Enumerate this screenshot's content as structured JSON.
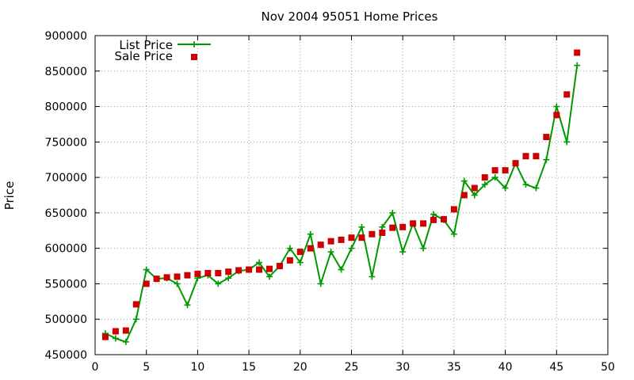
{
  "chart_data": {
    "type": "line",
    "title": "Nov 2004 95051 Home Prices",
    "xlabel": "",
    "ylabel": "Price",
    "xlim": [
      0,
      50
    ],
    "ylim": [
      450000,
      900000
    ],
    "x_ticks": [
      "0",
      "5",
      "10",
      "15",
      "20",
      "25",
      "30",
      "35",
      "40",
      "45",
      "50"
    ],
    "y_ticks": [
      "450000",
      "500000",
      "550000",
      "600000",
      "650000",
      "700000",
      "750000",
      "800000",
      "850000",
      "900000"
    ],
    "grid": true,
    "legend_position": "top-left",
    "series": [
      {
        "name": "List Price",
        "color": "#009900",
        "style": "line+cross",
        "points": [
          [
            1,
            480000
          ],
          [
            2,
            473000
          ],
          [
            3,
            468000
          ],
          [
            4,
            500000
          ],
          [
            5,
            570000
          ],
          [
            6,
            557000
          ],
          [
            7,
            558000
          ],
          [
            8,
            550000
          ],
          [
            9,
            520000
          ],
          [
            10,
            558000
          ],
          [
            11,
            562000
          ],
          [
            12,
            550000
          ],
          [
            13,
            558000
          ],
          [
            14,
            568000
          ],
          [
            15,
            570000
          ],
          [
            16,
            580000
          ],
          [
            17,
            560000
          ],
          [
            18,
            575000
          ],
          [
            19,
            600000
          ],
          [
            20,
            580000
          ],
          [
            21,
            620000
          ],
          [
            22,
            550000
          ],
          [
            23,
            595000
          ],
          [
            24,
            570000
          ],
          [
            25,
            600000
          ],
          [
            26,
            630000
          ],
          [
            27,
            560000
          ],
          [
            28,
            630000
          ],
          [
            29,
            650000
          ],
          [
            30,
            595000
          ],
          [
            31,
            635000
          ],
          [
            32,
            600000
          ],
          [
            33,
            648000
          ],
          [
            34,
            640000
          ],
          [
            35,
            620000
          ],
          [
            36,
            695000
          ],
          [
            37,
            675000
          ],
          [
            38,
            690000
          ],
          [
            39,
            700000
          ],
          [
            40,
            685000
          ],
          [
            41,
            720000
          ],
          [
            42,
            690000
          ],
          [
            43,
            685000
          ],
          [
            44,
            725000
          ],
          [
            45,
            800000
          ],
          [
            46,
            750000
          ],
          [
            47,
            858000
          ]
        ]
      },
      {
        "name": "Sale Price",
        "color": "#cc0000",
        "style": "square",
        "points": [
          [
            1,
            475000
          ],
          [
            2,
            483000
          ],
          [
            3,
            484000
          ],
          [
            4,
            521000
          ],
          [
            5,
            550000
          ],
          [
            6,
            557000
          ],
          [
            7,
            559000
          ],
          [
            8,
            560000
          ],
          [
            9,
            562000
          ],
          [
            10,
            564000
          ],
          [
            11,
            565000
          ],
          [
            12,
            565000
          ],
          [
            13,
            567000
          ],
          [
            14,
            569000
          ],
          [
            15,
            570000
          ],
          [
            16,
            570000
          ],
          [
            17,
            571000
          ],
          [
            18,
            575000
          ],
          [
            19,
            583000
          ],
          [
            20,
            595000
          ],
          [
            21,
            600000
          ],
          [
            22,
            605000
          ],
          [
            23,
            610000
          ],
          [
            24,
            612000
          ],
          [
            25,
            615000
          ],
          [
            26,
            615000
          ],
          [
            27,
            620000
          ],
          [
            28,
            622000
          ],
          [
            29,
            629000
          ],
          [
            30,
            630000
          ],
          [
            31,
            635000
          ],
          [
            32,
            635000
          ],
          [
            33,
            640000
          ],
          [
            34,
            641000
          ],
          [
            35,
            655000
          ],
          [
            36,
            675000
          ],
          [
            37,
            685000
          ],
          [
            38,
            700000
          ],
          [
            39,
            710000
          ],
          [
            40,
            710000
          ],
          [
            41,
            720000
          ],
          [
            42,
            730000
          ],
          [
            43,
            730000
          ],
          [
            44,
            757000
          ],
          [
            45,
            788000
          ],
          [
            46,
            817000
          ],
          [
            47,
            876000
          ]
        ]
      }
    ]
  }
}
